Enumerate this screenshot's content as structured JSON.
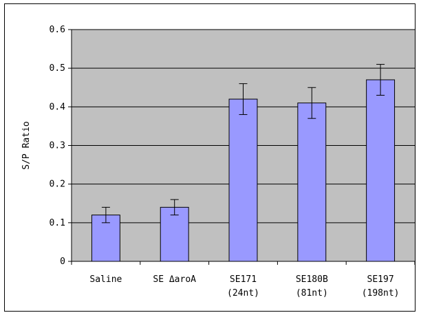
{
  "chart_data": {
    "type": "bar",
    "categories": [
      [
        "Saline"
      ],
      [
        "SE ΔaroA"
      ],
      [
        "SE171",
        "(24nt)"
      ],
      [
        "SE180B",
        "(81nt)"
      ],
      [
        "SE197",
        "(198nt)"
      ]
    ],
    "values": [
      0.12,
      0.14,
      0.42,
      0.41,
      0.47
    ],
    "error": [
      0.02,
      0.02,
      0.04,
      0.04,
      0.04
    ],
    "title": "",
    "xlabel": "",
    "ylabel": "S/P Ratio",
    "ylim": [
      0,
      0.6
    ],
    "yticks": [
      {
        "value": 0,
        "label": "0"
      },
      {
        "value": 0.1,
        "label": "0.1"
      },
      {
        "value": 0.2,
        "label": "0.2"
      },
      {
        "value": 0.3,
        "label": "0.3"
      },
      {
        "value": 0.4,
        "label": "0.4"
      },
      {
        "value": 0.5,
        "label": "0.5"
      },
      {
        "value": 0.6,
        "label": "0.6"
      }
    ],
    "grid": true,
    "colors": {
      "bar_fill": "#9999ff",
      "plot_background": "#c0c0c0",
      "gridline": "#000000",
      "bar_stroke": "#000000"
    }
  }
}
